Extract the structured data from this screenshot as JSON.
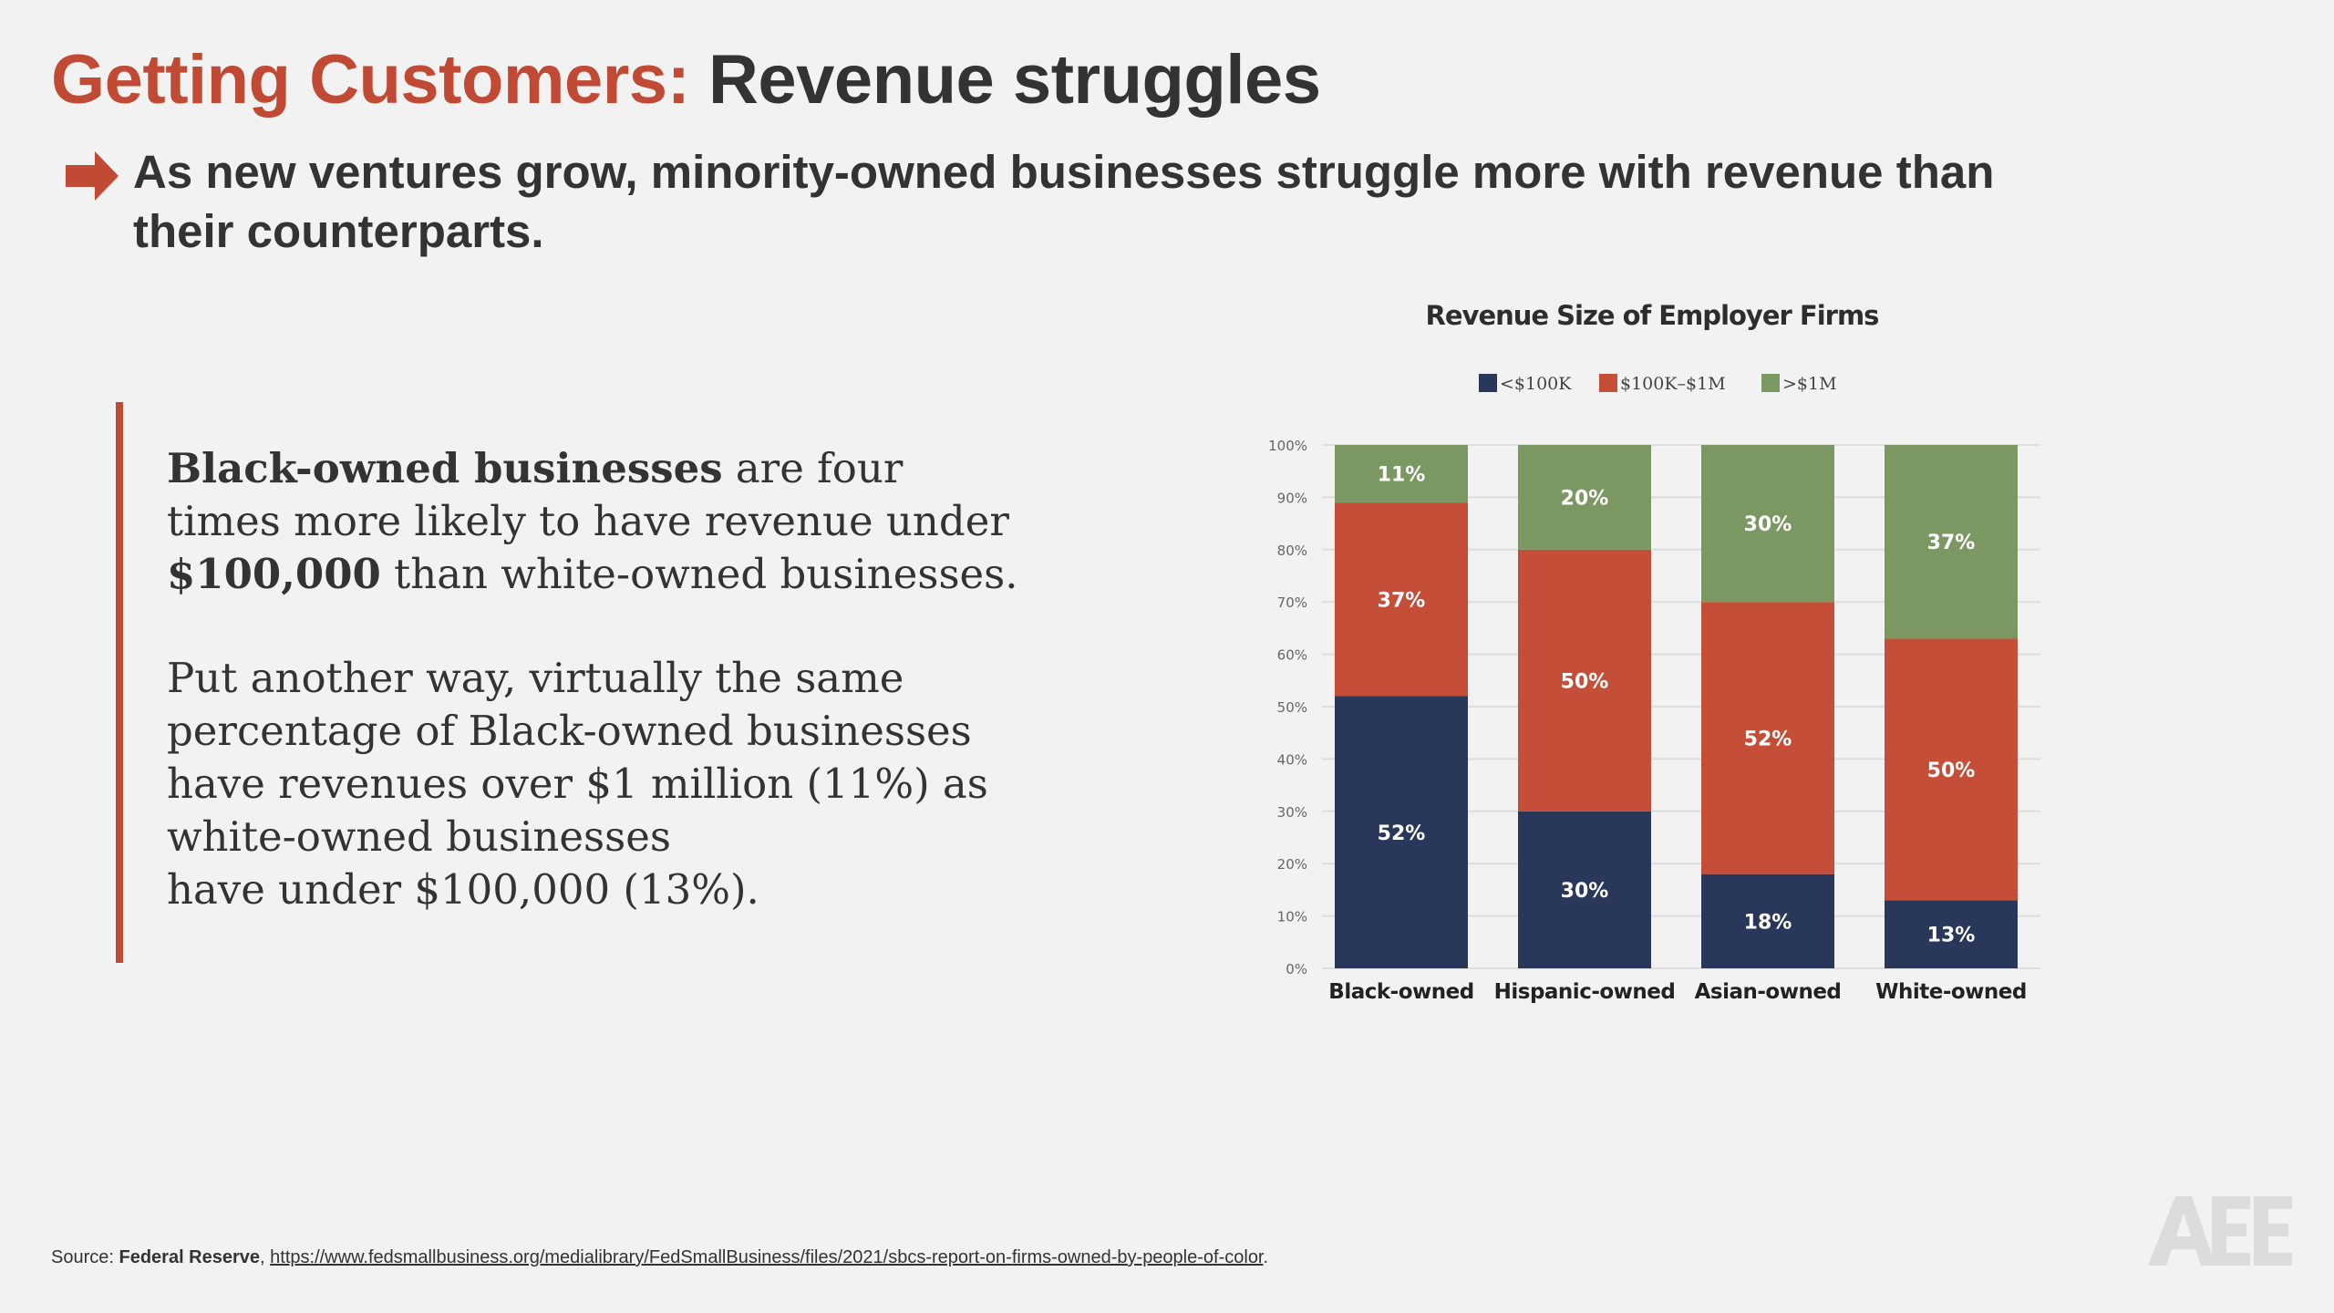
{
  "header": {
    "title_accent": "Getting Customers:",
    "title_rest": "Revenue struggles",
    "subtitle_line1": "As new ventures grow, minority-owned businesses struggle more with revenue than",
    "subtitle_line2": "their counterparts."
  },
  "body": {
    "p1_bold1": "Black-owned businesses",
    "p1_text1": " are four",
    "p1_line2": "times more likely to have revenue under",
    "p1_bold2": "$100,000",
    "p1_text3": " than white-owned businesses.",
    "p2_lines": [
      "Put another way, virtually the same",
      "percentage of Black-owned businesses",
      "have revenues over $1 million (11%) as",
      "white-owned businesses",
      "have under $100,000 (13%)."
    ]
  },
  "chart_data": {
    "type": "bar",
    "stacked": true,
    "title": "Revenue Size of Employer Firms",
    "categories": [
      "Black-owned",
      "Hispanic-owned",
      "Asian-owned",
      "White-owned"
    ],
    "series": [
      {
        "name": "<$100K",
        "values": [
          52,
          30,
          18,
          13
        ],
        "color": "#28375a"
      },
      {
        "name": "$100K–$1M",
        "values": [
          37,
          50,
          52,
          50
        ],
        "color": "#c44e37"
      },
      {
        "name": ">$1M",
        "values": [
          11,
          20,
          30,
          37
        ],
        "color": "#7c9862"
      }
    ],
    "yticks": [
      "0%",
      "10%",
      "20%",
      "30%",
      "40%",
      "50%",
      "60%",
      "70%",
      "80%",
      "90%",
      "100%"
    ],
    "ylim": [
      0,
      100
    ],
    "legend_position": "top",
    "grid": true
  },
  "footer": {
    "source_label": "Source: ",
    "source_name": "Federal Reserve",
    "separator": ", ",
    "source_url": "https://www.fedsmallbusiness.org/medialibrary/FedSmallBusiness/files/2021/sbcs-report-on-firms-owned-by-people-of-color",
    "end": "."
  },
  "logo": {
    "name": "aee-logo",
    "text": "AEE"
  }
}
